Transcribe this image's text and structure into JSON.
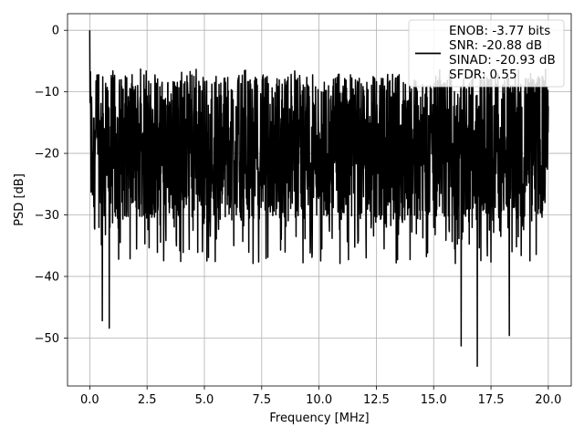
{
  "chart_data": {
    "type": "line",
    "title": "",
    "xlabel": "Frequency [MHz]",
    "ylabel": "PSD [dB]",
    "xlim": [
      -0.97,
      21.0
    ],
    "ylim": [
      -57.8,
      2.7
    ],
    "xticks": [
      0.0,
      2.5,
      5.0,
      7.5,
      10.0,
      12.5,
      15.0,
      17.5,
      20.0
    ],
    "xtick_labels": [
      "0.0",
      "2.5",
      "5.0",
      "7.5",
      "10.0",
      "12.5",
      "15.0",
      "17.5",
      "20.0"
    ],
    "yticks": [
      0,
      -10,
      -20,
      -30,
      -40,
      -50
    ],
    "ytick_labels": [
      "0",
      "−10",
      "−20",
      "−30",
      "−40",
      "−50"
    ],
    "grid": true,
    "legend_position": "top-right",
    "legend_entries": [
      "ENOB: -3.77 bits",
      "SNR: -20.88 dB",
      "SINAD: -20.93 dB",
      "SFDR: 0.55"
    ],
    "series": [
      {
        "color": "#000000",
        "x_range": [
          0.0,
          20.0
        ],
        "approx_points": 2048,
        "baseline_db": -19,
        "envelope_db": [
          -6.3,
          -30
        ],
        "peak_db": 0.0,
        "notable_dips": [
          {
            "x": 0.55,
            "y": -47.2
          },
          {
            "x": 0.85,
            "y": -48.4
          },
          {
            "x": 16.2,
            "y": -51.3
          },
          {
            "x": 16.9,
            "y": -54.6
          },
          {
            "x": 18.3,
            "y": -49.6
          }
        ]
      }
    ]
  },
  "colors": {
    "line": "#000000",
    "grid": "#b0b0b0"
  }
}
